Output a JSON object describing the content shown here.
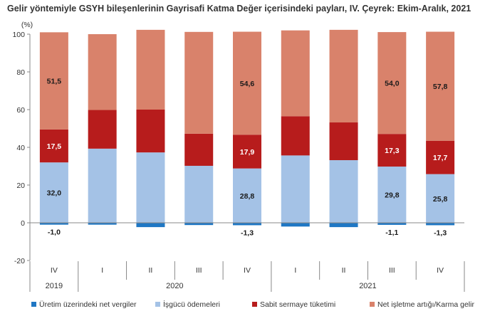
{
  "chart_data": {
    "type": "bar",
    "stacked": true,
    "title": "Gelir yöntemiyle GSYH bileşenlerinin Gayrisafi Katma Değer içerisindeki payları, IV. Çeyrek: Ekim-Aralık, 2021",
    "ylabel": "(%)",
    "ylim": [
      -20,
      100
    ],
    "yticks": [
      -20,
      0,
      20,
      40,
      60,
      80,
      100
    ],
    "categories": [
      "IV",
      "I",
      "II",
      "III",
      "IV",
      "I",
      "II",
      "III",
      "IV"
    ],
    "years": [
      {
        "label": "2019",
        "span": 1
      },
      {
        "label": "2020",
        "span": 4
      },
      {
        "label": "2021",
        "span": 4
      }
    ],
    "series": [
      {
        "name": "Üretim üzerindeki net vergiler",
        "color": "#1f77c4",
        "values": [
          -1.0,
          -1.0,
          -2.3,
          -1.2,
          -1.3,
          -2.0,
          -2.3,
          -1.1,
          -1.3
        ],
        "labels": [
          "-1,0",
          "",
          "",
          "",
          "-1,3",
          "",
          "",
          "-1,1",
          "-1,3"
        ]
      },
      {
        "name": "İşgücü ödemeleri",
        "color": "#a4c2e6",
        "values": [
          32.0,
          39.3,
          37.3,
          30.2,
          28.8,
          35.7,
          33.2,
          29.8,
          25.8
        ],
        "labels": [
          "32,0",
          "",
          "",
          "",
          "28,8",
          "",
          "",
          "29,8",
          "25,8"
        ]
      },
      {
        "name": "Sabit sermaye tüketimi",
        "color": "#b71c1c",
        "values": [
          17.5,
          20.5,
          22.7,
          17.0,
          17.9,
          20.8,
          20.0,
          17.3,
          17.7
        ],
        "labels": [
          "17,5",
          "",
          "",
          "",
          "17,9",
          "",
          "",
          "17,3",
          "17,7"
        ]
      },
      {
        "name": "Net işletme artığı/Karma gelir",
        "color": "#d9826b",
        "values": [
          51.5,
          40.2,
          42.3,
          54.0,
          54.6,
          45.5,
          49.1,
          54.0,
          57.8
        ],
        "labels": [
          "51,5",
          "",
          "",
          "",
          "54,6",
          "",
          "",
          "54,0",
          "57,8"
        ]
      }
    ],
    "legend_position": "bottom",
    "grid": false
  }
}
